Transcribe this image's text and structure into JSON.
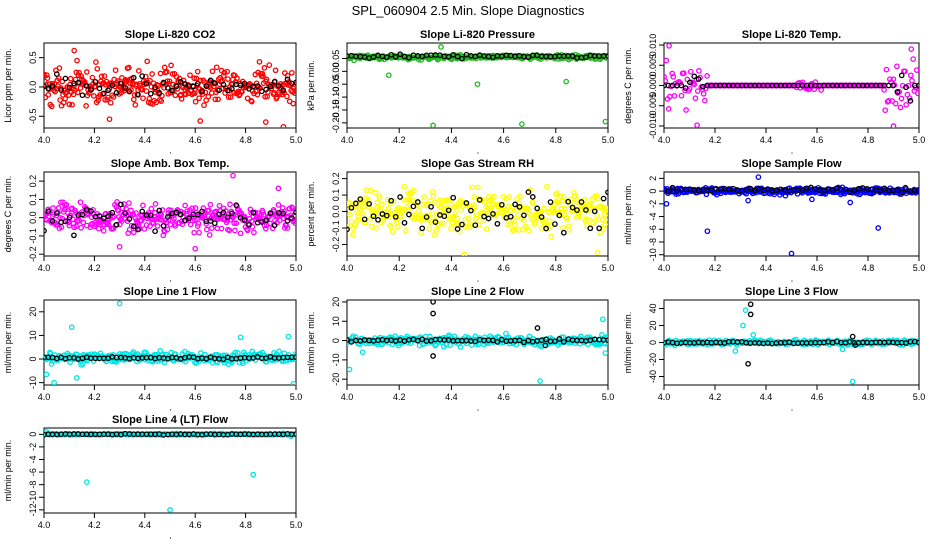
{
  "figure_title": "SPL_060904  2.5 Min. Slope Diagnostics",
  "colors": {
    "axis": "#000000",
    "red": "#ff0000",
    "green": "#22b822",
    "magenta": "#ff00ff",
    "yellow": "#ffff00",
    "blue": "#0000ff",
    "cyan": "#00e5e5",
    "black_marker": "#000000"
  },
  "chart_data": [
    {
      "type": "scatter",
      "title": "Slope Li-820 CO2",
      "ylabel": "Licor ppm per min.",
      "xlabel": "",
      "xlim": [
        4.0,
        5.0
      ],
      "xticks": [
        "4.0",
        "4.2",
        "4.4",
        "4.6",
        "4.8",
        "5.0"
      ],
      "ylim": [
        -0.7,
        0.75
      ],
      "yticks": [
        -0.5,
        0.0,
        0.5
      ],
      "ytick_labels": [
        "-0.5",
        "0.0",
        "0.5"
      ],
      "series_color": "red",
      "series": {
        "name": "slope",
        "color": "red",
        "center": 0.0,
        "spread": 0.22,
        "count": 360,
        "outliers": [
          [
            4.12,
            0.62
          ],
          [
            4.95,
            -0.68
          ],
          [
            4.26,
            -0.55
          ],
          [
            4.62,
            -0.58
          ],
          [
            4.88,
            -0.6
          ]
        ]
      },
      "reference": {
        "name": "reference",
        "color": "black",
        "center": 0.0,
        "spread": 0.12,
        "count": 60
      }
    },
    {
      "type": "scatter",
      "title": "Slope Li-820 Pressure",
      "ylabel": "kPa per min.",
      "xlabel": "",
      "xlim": [
        4.0,
        5.0
      ],
      "xticks": [
        "4.0",
        "4.2",
        "4.4",
        "4.6",
        "4.8",
        "5.0"
      ],
      "ylim": [
        -0.22,
        0.11
      ],
      "yticks": [
        -0.2,
        -0.15,
        -0.1,
        -0.05,
        0.0,
        0.05
      ],
      "ytick_labels": [
        "-0.20",
        "-0.15",
        "-0.10",
        "-0.05",
        "0.00",
        "0.05"
      ],
      "series": {
        "name": "slope",
        "color": "green",
        "center": 0.055,
        "spread": 0.006,
        "count": 300,
        "outliers": [
          [
            4.16,
            -0.015
          ],
          [
            4.33,
            -0.21
          ],
          [
            4.5,
            -0.05
          ],
          [
            4.67,
            -0.205
          ],
          [
            4.84,
            -0.04
          ],
          [
            4.99,
            -0.195
          ],
          [
            4.36,
            0.095
          ]
        ]
      },
      "reference": {
        "name": "reference",
        "color": "black",
        "center": 0.058,
        "spread": 0.005,
        "count": 60
      }
    },
    {
      "type": "scatter",
      "title": "Slope Li-820 Temp.",
      "ylabel": "degrees C per min.",
      "xlabel": "",
      "xlim": [
        4.0,
        5.0
      ],
      "xticks": [
        "4.0",
        "4.2",
        "4.4",
        "4.6",
        "4.8",
        "5.0"
      ],
      "ylim": [
        -0.0105,
        0.0105
      ],
      "yticks": [
        -0.01,
        -0.005,
        0.0,
        0.005,
        0.01
      ],
      "ytick_labels": [
        "-0.010",
        "-0.005",
        "0.000",
        "0.005",
        "0.010"
      ],
      "series": {
        "name": "slope",
        "color": "magenta",
        "center": 0.0,
        "spread": 0.0,
        "count": 220,
        "bursts": [
          [
            4.0,
            4.17,
            0.004
          ],
          [
            4.52,
            4.62,
            0.0012
          ],
          [
            4.86,
            5.0,
            0.004
          ]
        ],
        "outliers": [
          [
            4.13,
            -0.0098
          ],
          [
            4.9,
            -0.01
          ],
          [
            4.97,
            0.009
          ],
          [
            4.02,
            0.0098
          ]
        ]
      },
      "reference": {
        "name": "reference",
        "color": "black",
        "center": 0.0,
        "spread": 0.0,
        "count": 60,
        "bursts": [
          [
            4.07,
            4.16,
            0.002
          ],
          [
            4.9,
            4.97,
            0.002
          ]
        ]
      }
    },
    {
      "type": "scatter",
      "title": "Slope Amb. Box Temp.",
      "ylabel": "degrees C per min.",
      "xlabel": "",
      "xlim": [
        4.0,
        5.0
      ],
      "xticks": [
        "4.0",
        "4.2",
        "4.4",
        "4.6",
        "4.8",
        "5.0"
      ],
      "ylim": [
        -0.21,
        0.25
      ],
      "yticks": [
        -0.2,
        -0.1,
        0.0,
        0.1,
        0.2
      ],
      "ytick_labels": [
        "-0.2",
        "-0.1",
        "0.0",
        "0.1",
        "0.2"
      ],
      "series": {
        "name": "slope",
        "color": "magenta",
        "center": 0.0,
        "spread": 0.055,
        "count": 360,
        "outliers": [
          [
            4.75,
            0.23
          ],
          [
            4.3,
            -0.16
          ],
          [
            4.6,
            -0.17
          ],
          [
            4.93,
            0.16
          ]
        ]
      },
      "reference": {
        "name": "reference",
        "color": "black",
        "center": 0.0,
        "spread": 0.045,
        "count": 60
      }
    },
    {
      "type": "scatter",
      "title": "Slope Gas Stream RH",
      "ylabel": "percent per min.",
      "xlabel": "",
      "xlim": [
        4.0,
        5.0
      ],
      "xticks": [
        "4.0",
        "4.2",
        "4.4",
        "4.6",
        "4.8",
        "5.0"
      ],
      "ylim": [
        -0.27,
        0.24
      ],
      "yticks": [
        -0.2,
        -0.1,
        0.0,
        0.1,
        0.2
      ],
      "ytick_labels": [
        "-0.2",
        "-0.1",
        "0.0",
        "0.1",
        "0.2"
      ],
      "series": {
        "name": "slope",
        "color": "yellow",
        "center": 0.0,
        "spread": 0.09,
        "count": 360,
        "outliers": [
          [
            4.45,
            -0.26
          ],
          [
            4.96,
            -0.25
          ]
        ]
      },
      "reference": {
        "name": "reference",
        "color": "black",
        "center": 0.0,
        "spread": 0.08,
        "count": 60
      }
    },
    {
      "type": "scatter",
      "title": "Slope Sample Flow",
      "ylabel": "ml/min per min.",
      "xlabel": "",
      "xlim": [
        4.0,
        5.0
      ],
      "xticks": [
        "4.0",
        "4.2",
        "4.4",
        "4.6",
        "4.8",
        "5.0"
      ],
      "ylim": [
        -10.2,
        3.0
      ],
      "yticks": [
        -10,
        -8,
        -6,
        -4,
        -2,
        0,
        2
      ],
      "ytick_labels": [
        "-10",
        "-8",
        "-6",
        "-4",
        "-2",
        "0",
        "2"
      ],
      "series": {
        "name": "slope",
        "color": "blue",
        "center": 0.0,
        "spread": 0.35,
        "count": 320,
        "outliers": [
          [
            4.17,
            -6.3
          ],
          [
            4.5,
            -9.8
          ],
          [
            4.84,
            -5.8
          ],
          [
            4.37,
            2.2
          ],
          [
            4.01,
            -2.0
          ],
          [
            4.33,
            -1.5
          ],
          [
            4.58,
            -1.3
          ],
          [
            4.73,
            -1.8
          ]
        ]
      },
      "reference": {
        "name": "reference",
        "color": "black",
        "center": 0.2,
        "spread": 0.2,
        "count": 60
      }
    },
    {
      "type": "scatter",
      "title": "Slope Line 1 Flow",
      "ylabel": "ml/min per min.",
      "xlabel": "",
      "xlim": [
        4.0,
        5.0
      ],
      "xticks": [
        "4.0",
        "4.2",
        "4.4",
        "4.6",
        "4.8",
        "5.0"
      ],
      "ylim": [
        -11.0,
        25.0
      ],
      "yticks": [
        -10,
        0,
        10,
        20
      ],
      "ytick_labels": [
        "-10",
        "0",
        "10",
        "20"
      ],
      "series": {
        "name": "slope",
        "color": "cyan",
        "center": 0.5,
        "spread": 1.6,
        "count": 300,
        "outliers": [
          [
            4.3,
            23.5
          ],
          [
            4.11,
            13.5
          ],
          [
            4.01,
            -6.5
          ],
          [
            4.78,
            9.2
          ],
          [
            4.99,
            -10.5
          ],
          [
            4.13,
            -8.0
          ],
          [
            4.04,
            -10.0
          ],
          [
            4.97,
            9.5
          ]
        ]
      },
      "reference": {
        "name": "reference",
        "color": "black",
        "center": 0.5,
        "spread": 0.4,
        "count": 60
      }
    },
    {
      "type": "scatter",
      "title": "Slope Line 2 Flow",
      "ylabel": "ml/min per min.",
      "xlabel": "",
      "xlim": [
        4.0,
        5.0
      ],
      "xticks": [
        "4.0",
        "4.2",
        "4.4",
        "4.6",
        "4.8",
        "5.0"
      ],
      "ylim": [
        -23.0,
        21.0
      ],
      "yticks": [
        -20,
        -10,
        0,
        10,
        20
      ],
      "ytick_labels": [
        "-20",
        "-10",
        "0",
        "10",
        "20"
      ],
      "series": {
        "name": "slope",
        "color": "cyan",
        "center": 0.0,
        "spread": 1.8,
        "count": 300,
        "outliers": [
          [
            4.01,
            -15.0
          ],
          [
            4.74,
            -21.0
          ],
          [
            4.98,
            11.0
          ],
          [
            4.06,
            -6.0
          ],
          [
            4.99,
            -6.5
          ]
        ]
      },
      "reference": {
        "name": "reference",
        "color": "black",
        "center": 0.0,
        "spread": 0.6,
        "count": 60,
        "extra": [
          [
            4.33,
            20.0
          ],
          [
            4.33,
            14.0
          ],
          [
            4.33,
            -8.0
          ],
          [
            4.73,
            6.5
          ],
          [
            4.76,
            -2.5
          ]
        ]
      }
    },
    {
      "type": "scatter",
      "title": "Slope Line 3 Flow",
      "ylabel": "ml/min per min.",
      "xlabel": "",
      "xlim": [
        4.0,
        5.0
      ],
      "xticks": [
        "4.0",
        "4.2",
        "4.4",
        "4.6",
        "4.8",
        "5.0"
      ],
      "ylim": [
        -50.0,
        50.0
      ],
      "yticks": [
        -40,
        -20,
        0,
        20,
        40
      ],
      "ytick_labels": [
        "-40",
        "-20",
        "0",
        "20",
        "40"
      ],
      "series": {
        "name": "slope",
        "color": "cyan",
        "center": 0.0,
        "spread": 2.0,
        "count": 260,
        "outliers": [
          [
            4.28,
            -10.0
          ],
          [
            4.31,
            20.0
          ],
          [
            4.32,
            38.0
          ],
          [
            4.35,
            9.0
          ],
          [
            4.74,
            -46.0
          ],
          [
            4.7,
            -8.0
          ],
          [
            4.72,
            -3.0
          ]
        ]
      },
      "reference": {
        "name": "reference",
        "color": "black",
        "center": 0.0,
        "spread": 0.8,
        "count": 60,
        "extra": [
          [
            4.34,
            45.0
          ],
          [
            4.34,
            33.0
          ],
          [
            4.33,
            -25.0
          ],
          [
            4.74,
            7.0
          ],
          [
            4.75,
            -3.0
          ]
        ]
      }
    },
    {
      "type": "scatter",
      "title": "Slope Line 4 (LT) Flow",
      "ylabel": "ml/min per min.",
      "xlabel": "",
      "xlim": [
        4.0,
        5.0
      ],
      "xticks": [
        "4.0",
        "4.2",
        "4.4",
        "4.6",
        "4.8",
        "5.0"
      ],
      "ylim": [
        -12.5,
        1.0
      ],
      "yticks": [
        -12,
        -10,
        -8,
        -6,
        -4,
        -2,
        0
      ],
      "ytick_labels": [
        "-12",
        "-10",
        "-8",
        "-6",
        "-4",
        "-2",
        "0"
      ],
      "series": {
        "name": "slope",
        "color": "cyan",
        "center": 0.0,
        "spread": 0.08,
        "count": 240,
        "outliers": [
          [
            4.17,
            -7.6
          ],
          [
            4.5,
            -12.0
          ],
          [
            4.83,
            -6.4
          ],
          [
            4.01,
            0.4
          ],
          [
            4.98,
            -0.3
          ]
        ]
      },
      "reference": {
        "name": "reference",
        "color": "black",
        "center": 0.0,
        "spread": 0.05,
        "count": 60
      }
    }
  ]
}
